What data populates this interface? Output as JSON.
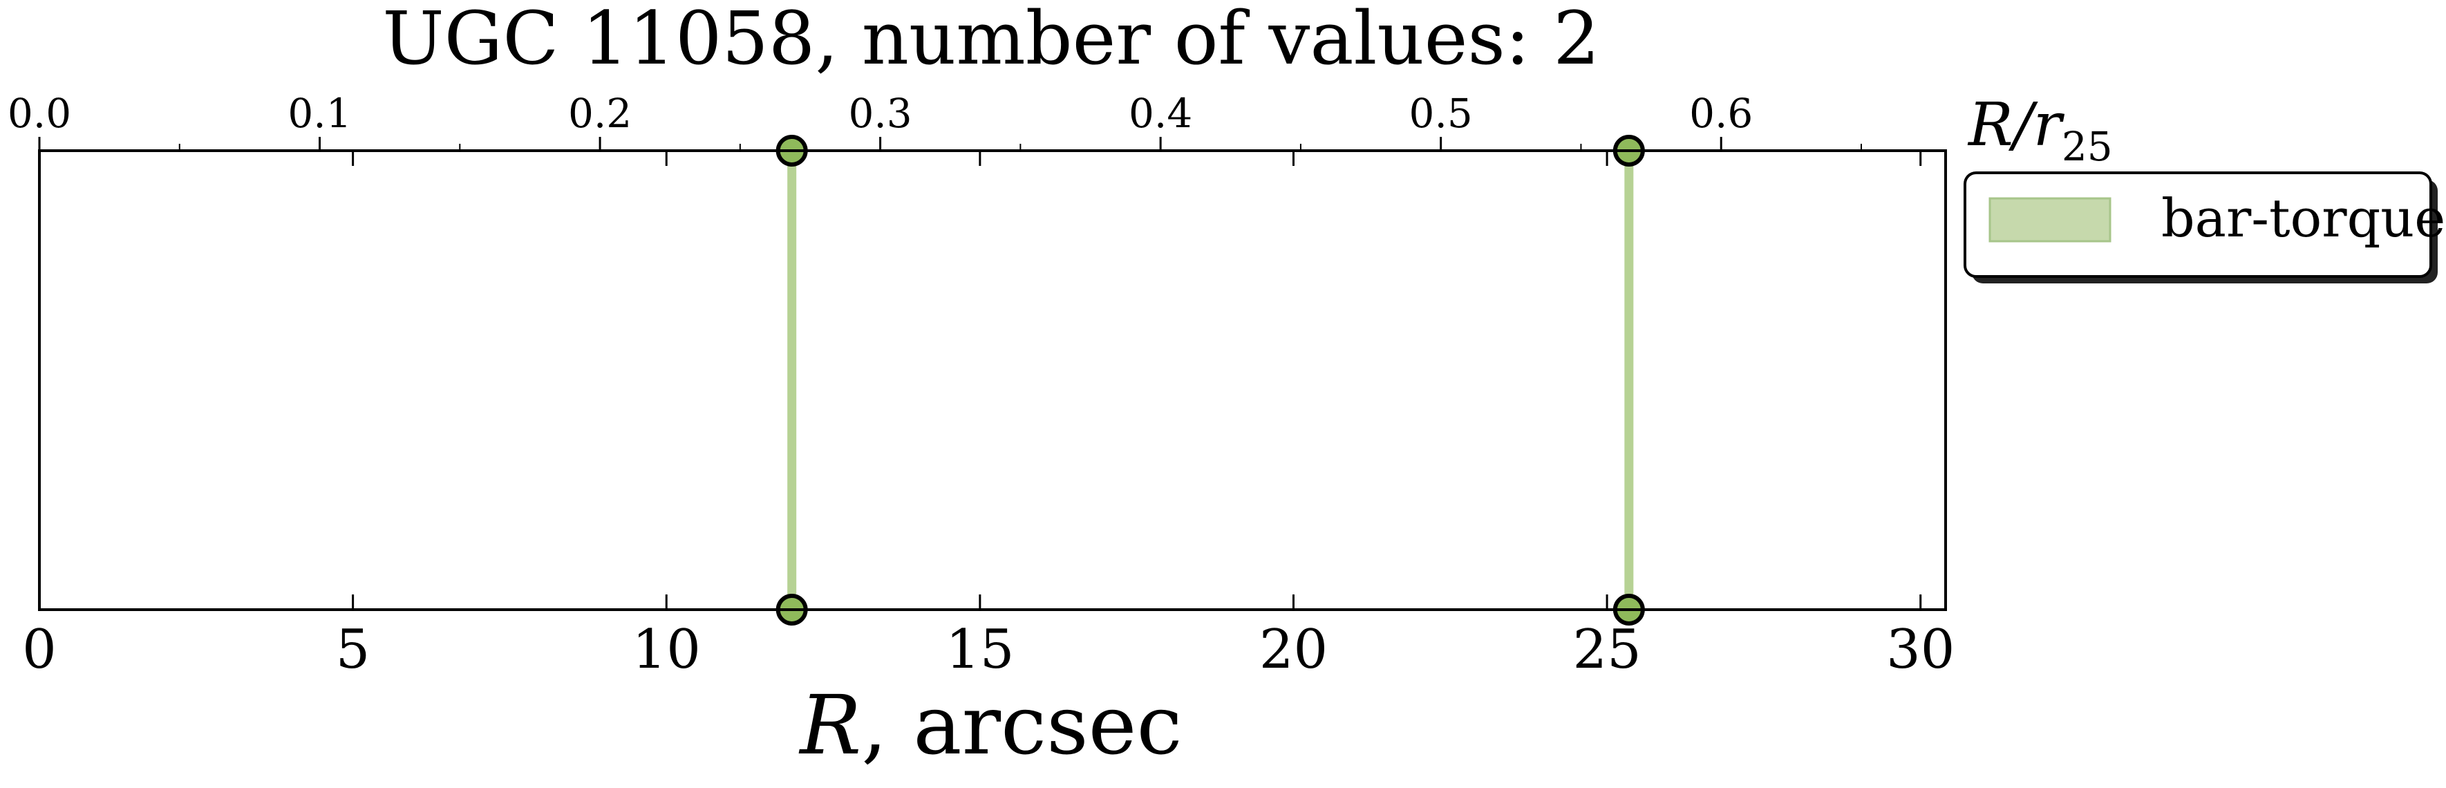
{
  "chart_data": {
    "type": "line",
    "title": "UGC 11058, number of values: 2",
    "xlabel_symbol": "R",
    "xlabel_unit": ", arcsec",
    "xlim": [
      0,
      30.4
    ],
    "xticks": [
      0,
      5,
      10,
      15,
      20,
      25,
      30
    ],
    "top_axis": {
      "label_main": "R/r",
      "label_sub": "25",
      "ticks": [
        0.0,
        0.1,
        0.2,
        0.3,
        0.4,
        0.5,
        0.6
      ],
      "tick_labels": [
        "0.0",
        "0.1",
        "0.2",
        "0.3",
        "0.4",
        "0.5",
        "0.6"
      ],
      "arcsec_per_unit": 44.7
    },
    "series": [
      {
        "name": "bar-torque",
        "color": "#8fba5b",
        "x": [
          12.0,
          25.35
        ]
      }
    ],
    "legend": {
      "placement": "outside-top-right"
    }
  }
}
